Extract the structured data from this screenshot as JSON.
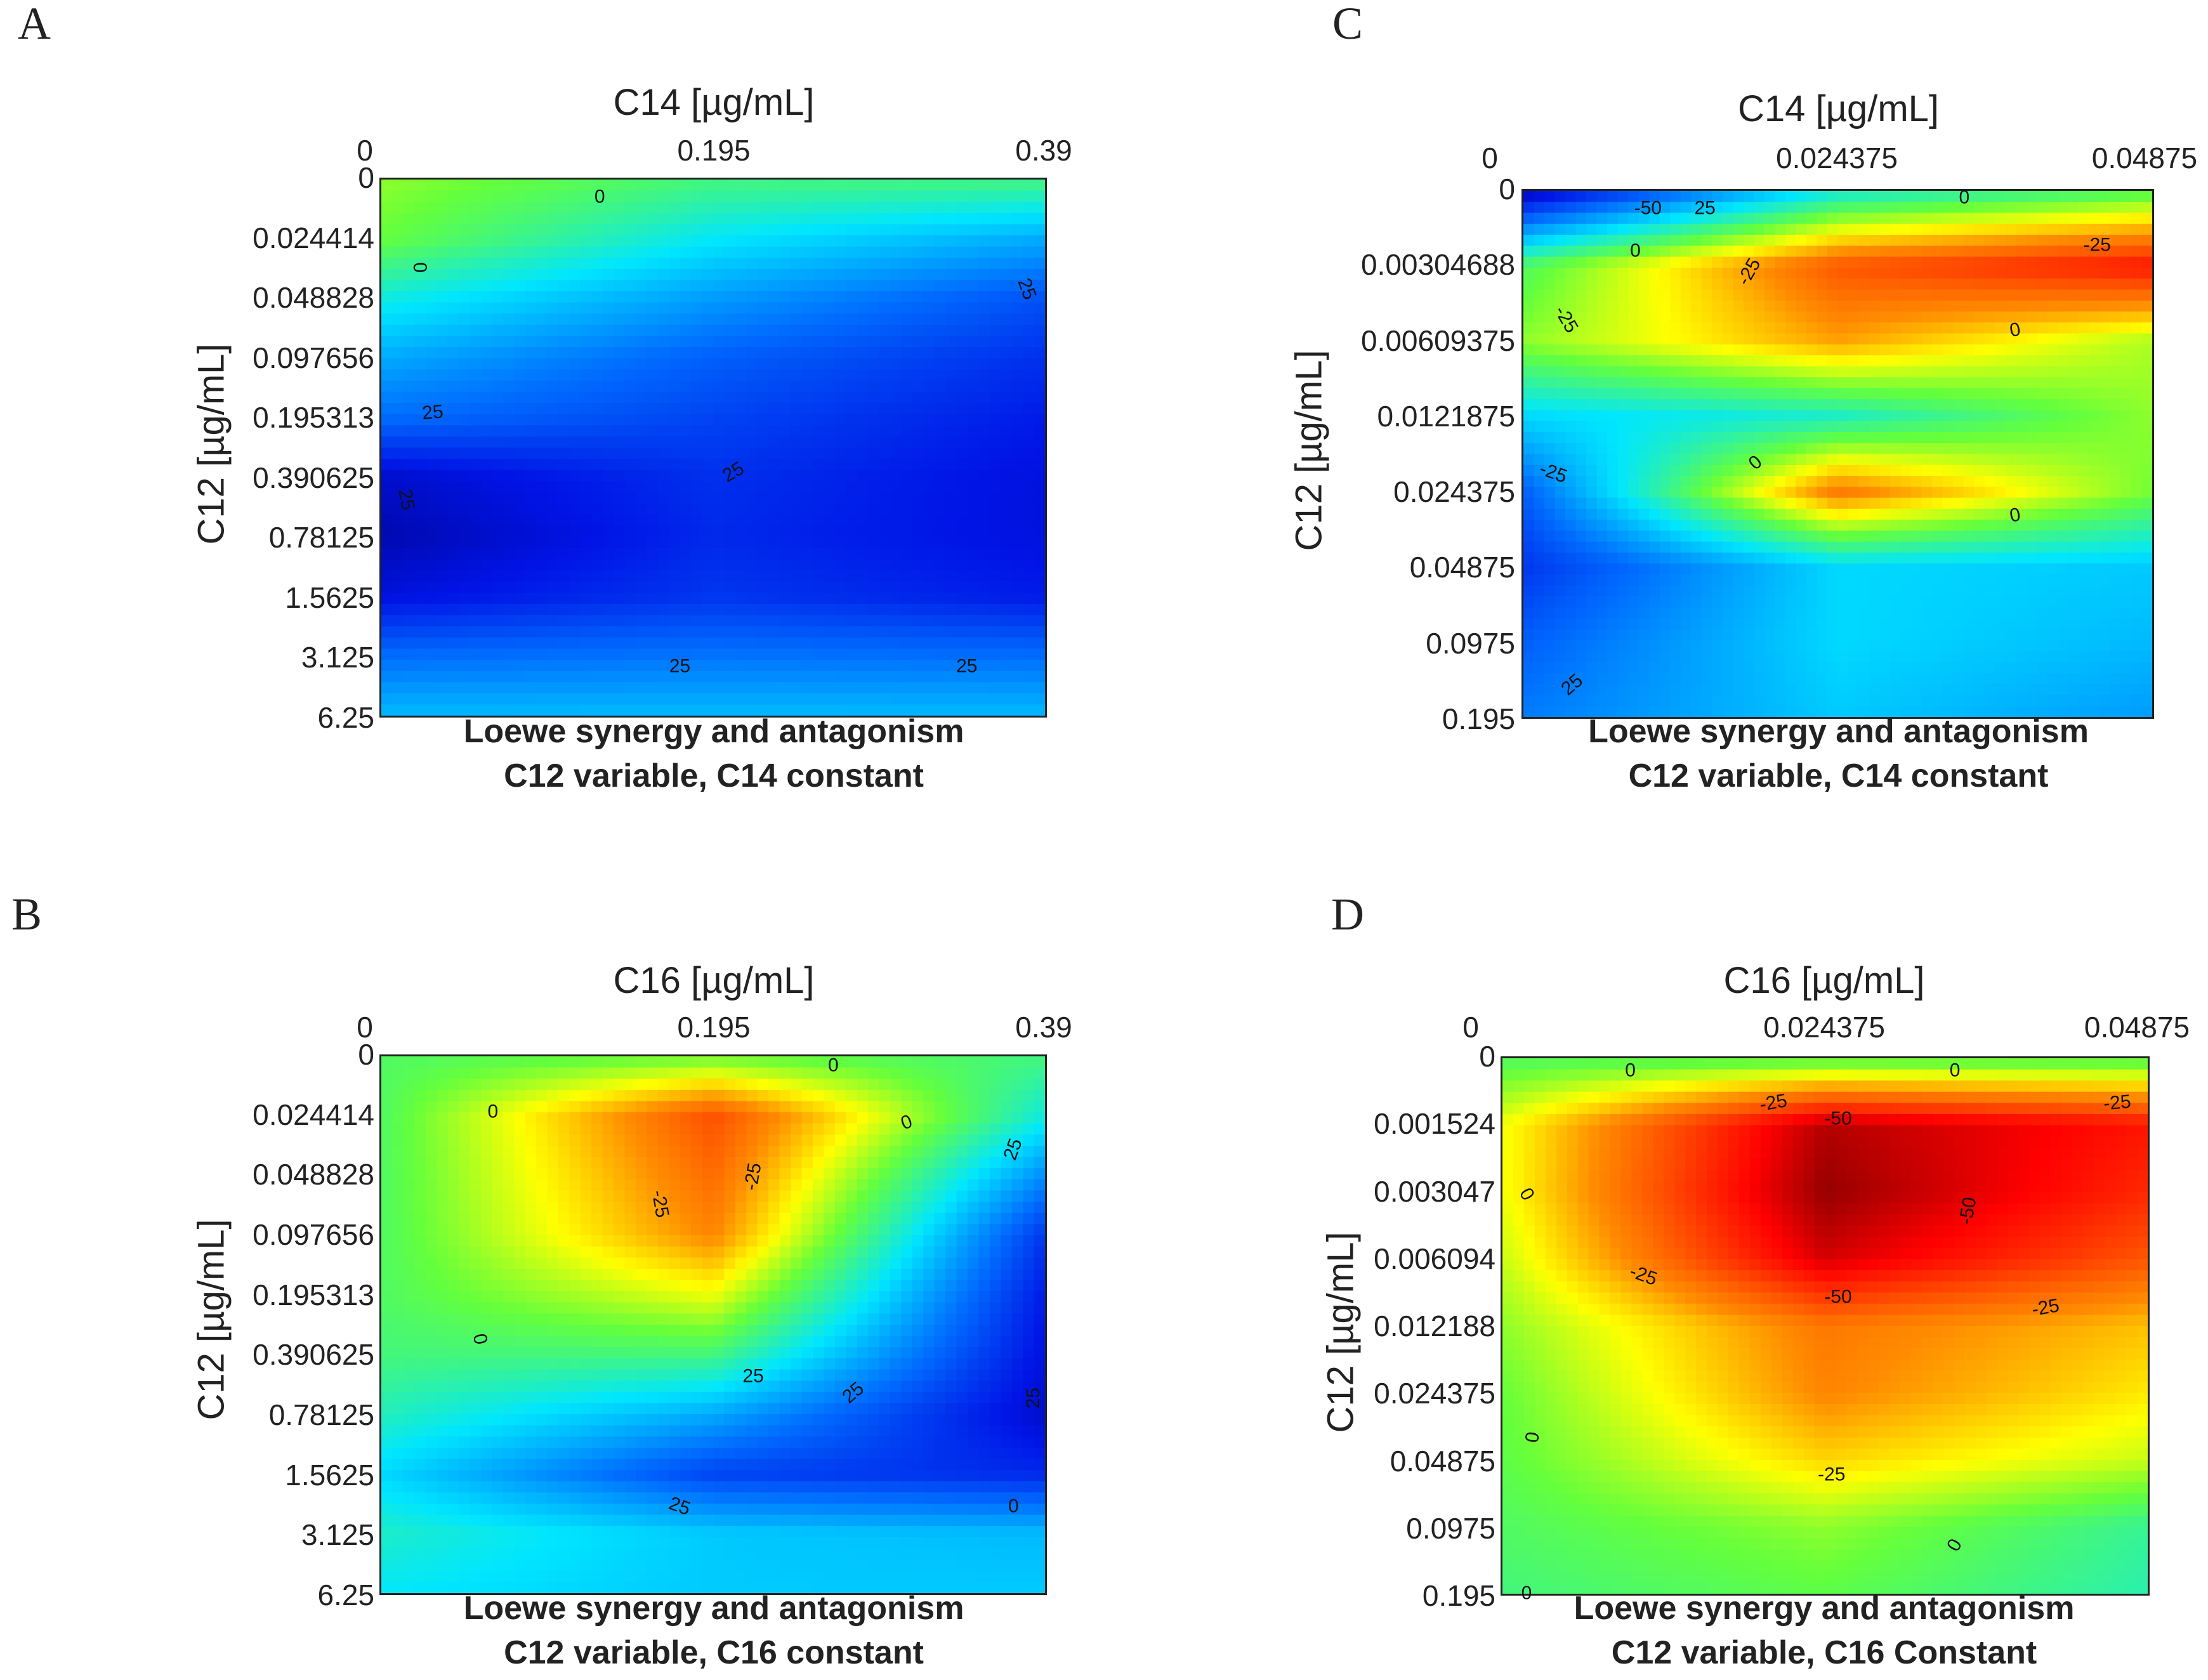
{
  "chart_data": [
    {
      "panel": "A",
      "type": "heatmap",
      "xlabel": "C14 [µg/mL]",
      "ylabel": "C12 [µg/mL]",
      "x_ticks": [
        "0",
        "0.195",
        "0.39"
      ],
      "y_ticks": [
        "0",
        "0.024414",
        "0.048828",
        "0.097656",
        "0.195313",
        "0.390625",
        "0.78125",
        "1.5625",
        "3.125",
        "6.25"
      ],
      "caption_line1": "Loewe synergy and antagonism",
      "caption_line2": "C12 variable, C14 constant",
      "contour_labels": [
        "0",
        "0",
        "25",
        "25",
        "25",
        "25",
        "25",
        "25"
      ],
      "values": [
        [
          -8,
          0,
          0
        ],
        [
          -5,
          10,
          18
        ],
        [
          8,
          20,
          30
        ],
        [
          18,
          28,
          35
        ],
        [
          26,
          32,
          38
        ],
        [
          42,
          35,
          40
        ],
        [
          45,
          36,
          40
        ],
        [
          40,
          34,
          38
        ],
        [
          26,
          25,
          26
        ],
        [
          16,
          16,
          16
        ]
      ]
    },
    {
      "panel": "C",
      "type": "heatmap",
      "xlabel": "C14 [µg/mL]",
      "ylabel": "C12 [µg/mL]",
      "x_ticks": [
        "0",
        "0.024375",
        "0.04875"
      ],
      "y_ticks": [
        "0",
        "0.00304688",
        "0.00609375",
        "0.0121875",
        "0.024375",
        "0.04875",
        "0.0975",
        "0.195"
      ],
      "caption_line1": "Loewe synergy and antagonism",
      "caption_line2": "C12 variable, C14 constant",
      "contour_labels": [
        "-50",
        "25",
        "0",
        "0",
        "-25",
        "-25",
        "-25",
        "0",
        "0",
        "0",
        "-25",
        "25"
      ],
      "values": [
        [
          45,
          8,
          -2
        ],
        [
          -2,
          -35,
          -45
        ],
        [
          -8,
          -25,
          -10
        ],
        [
          12,
          6,
          -8
        ],
        [
          28,
          -30,
          -6
        ],
        [
          34,
          12,
          14
        ],
        [
          28,
          12,
          16
        ],
        [
          24,
          14,
          20
        ]
      ]
    },
    {
      "panel": "B",
      "type": "heatmap",
      "xlabel": "C16 [µg/mL]",
      "ylabel": "C12 [µg/mL]",
      "x_ticks": [
        "0",
        "0.195",
        "0.39"
      ],
      "y_ticks": [
        "0",
        "0.024414",
        "0.048828",
        "0.097656",
        "0.195313",
        "0.390625",
        "0.78125",
        "1.5625",
        "3.125",
        "6.25"
      ],
      "caption_line1": "Loewe synergy and antagonism",
      "caption_line2": "C12 variable, C16 constant",
      "contour_labels": [
        "0",
        "0",
        "0",
        "-25",
        "-25",
        "25",
        "0",
        "25",
        "25",
        "25",
        "0",
        "25"
      ],
      "values": [
        [
          -2,
          -5,
          0
        ],
        [
          -2,
          -36,
          8
        ],
        [
          -2,
          -32,
          22
        ],
        [
          -2,
          -28,
          34
        ],
        [
          -2,
          -15,
          38
        ],
        [
          0,
          0,
          40
        ],
        [
          5,
          18,
          42
        ],
        [
          12,
          32,
          36
        ],
        [
          6,
          14,
          16
        ],
        [
          10,
          14,
          14
        ]
      ]
    },
    {
      "panel": "D",
      "type": "heatmap",
      "xlabel": "C16 [µg/mL]",
      "ylabel": "C12 [µg/mL]",
      "x_ticks": [
        "0",
        "0.024375",
        "0.04875"
      ],
      "y_ticks": [
        "0",
        "0.001524",
        "0.003047",
        "0.006094",
        "0.012188",
        "0.024375",
        "0.04875",
        "0.0975",
        "0.195"
      ],
      "caption_line1": "Loewe synergy and antagonism",
      "caption_line2": "C12 variable, C16 Constant",
      "contour_labels": [
        "0",
        "0",
        "-25",
        "-25",
        "-50",
        "-50",
        "-50",
        "0",
        "-25",
        "-25",
        "-25",
        "0",
        "0",
        "0"
      ],
      "values": [
        [
          -2,
          -2,
          -2
        ],
        [
          -15,
          -55,
          -45
        ],
        [
          -15,
          -58,
          -42
        ],
        [
          -12,
          -52,
          -35
        ],
        [
          -8,
          -30,
          -22
        ],
        [
          -5,
          -28,
          -18
        ],
        [
          -4,
          -20,
          -12
        ],
        [
          -2,
          -8,
          2
        ],
        [
          0,
          -4,
          4
        ]
      ]
    }
  ]
}
